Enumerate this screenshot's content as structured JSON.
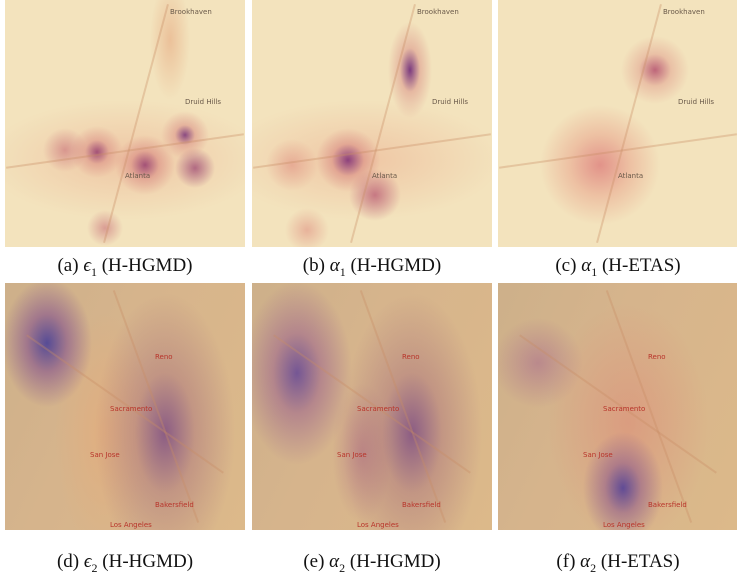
{
  "panels": [
    {
      "caption": {
        "label": "(a)",
        "symbol": "ϵ",
        "subscript": "1",
        "method": "(H-HGMD)"
      },
      "map_labels": [
        "Brookhaven",
        "Druid Hills",
        "Atlanta"
      ]
    },
    {
      "caption": {
        "label": "(b)",
        "symbol": "α",
        "subscript": "1",
        "method": "(H-HGMD)"
      },
      "map_labels": [
        "Brookhaven",
        "Druid Hills",
        "Atlanta"
      ]
    },
    {
      "caption": {
        "label": "(c)",
        "symbol": "α",
        "subscript": "1",
        "method": "(H-ETAS)"
      },
      "map_labels": [
        "Brookhaven",
        "Druid Hills",
        "Atlanta"
      ]
    },
    {
      "caption": {
        "label": "(d)",
        "symbol": "ϵ",
        "subscript": "2",
        "method": "(H-HGMD)"
      },
      "map_labels": [
        "Reno",
        "Sacramento",
        "San Jose",
        "Bakersfield",
        "Los Angeles"
      ]
    },
    {
      "caption": {
        "label": "(e)",
        "symbol": "α",
        "subscript": "2",
        "method": "(H-HGMD)"
      },
      "map_labels": [
        "Reno",
        "Sacramento",
        "San Jose",
        "Bakersfield",
        "Los Angeles"
      ]
    },
    {
      "caption": {
        "label": "(f)",
        "symbol": "α",
        "subscript": "2",
        "method": "(H-ETAS)"
      },
      "map_labels": [
        "Reno",
        "Sacramento",
        "San Jose",
        "Bakersfield",
        "Los Angeles"
      ]
    }
  ]
}
